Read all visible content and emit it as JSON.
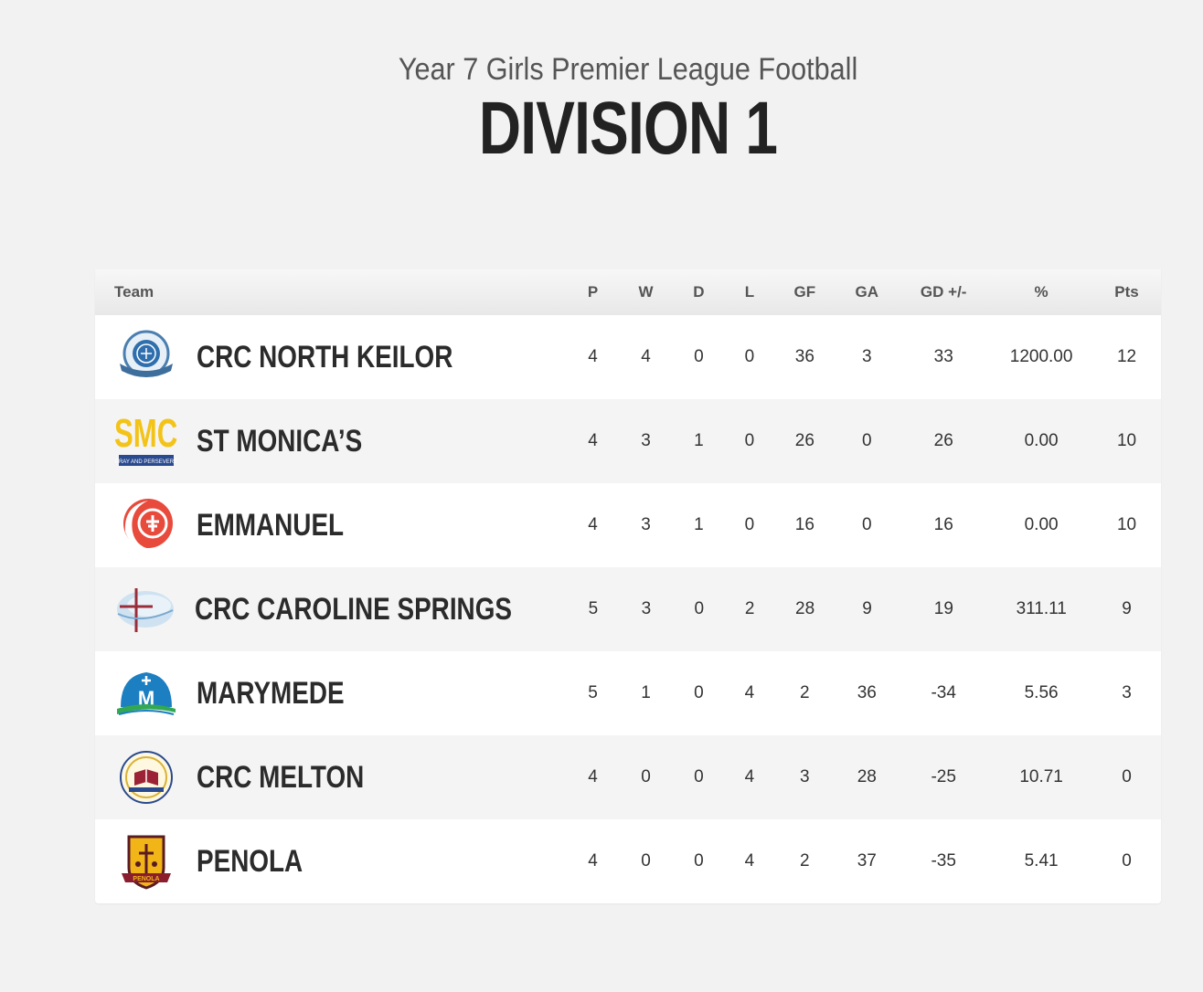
{
  "header": {
    "subtitle": "Year 7 Girls Premier League Football",
    "title": "DIVISION 1"
  },
  "table": {
    "columns": [
      "Team",
      "P",
      "W",
      "D",
      "L",
      "GF",
      "GA",
      "GD +/-",
      "%",
      "Pts"
    ],
    "rows": [
      {
        "team": "CRC NORTH KEILOR",
        "logo": "crc-north-keilor-logo",
        "p": "4",
        "w": "4",
        "d": "0",
        "l": "0",
        "gf": "36",
        "ga": "3",
        "gd": "33",
        "pct": "1200.00",
        "pts": "12"
      },
      {
        "team": "ST MONICA’S",
        "logo": "st-monicas-logo",
        "logo_text": "SMC",
        "logo_motto": "PRAY AND PERSEVERE",
        "p": "4",
        "w": "3",
        "d": "1",
        "l": "0",
        "gf": "26",
        "ga": "0",
        "gd": "26",
        "pct": "0.00",
        "pts": "10"
      },
      {
        "team": "EMMANUEL",
        "logo": "emmanuel-logo",
        "p": "4",
        "w": "3",
        "d": "1",
        "l": "0",
        "gf": "16",
        "ga": "0",
        "gd": "16",
        "pct": "0.00",
        "pts": "10"
      },
      {
        "team": "CRC CAROLINE SPRINGS",
        "logo": "crc-caroline-springs-logo",
        "p": "5",
        "w": "3",
        "d": "0",
        "l": "2",
        "gf": "28",
        "ga": "9",
        "gd": "19",
        "pct": "311.11",
        "pts": "9"
      },
      {
        "team": "MARYMEDE",
        "logo": "marymede-logo",
        "p": "5",
        "w": "1",
        "d": "0",
        "l": "4",
        "gf": "2",
        "ga": "36",
        "gd": "-34",
        "pct": "5.56",
        "pts": "3"
      },
      {
        "team": "CRC MELTON",
        "logo": "crc-melton-logo",
        "p": "4",
        "w": "0",
        "d": "0",
        "l": "4",
        "gf": "3",
        "ga": "28",
        "gd": "-25",
        "pct": "10.71",
        "pts": "0"
      },
      {
        "team": "PENOLA",
        "logo": "penola-logo",
        "logo_text": "PENOLA",
        "p": "4",
        "w": "0",
        "d": "0",
        "l": "4",
        "gf": "2",
        "ga": "37",
        "gd": "-35",
        "pct": "5.41",
        "pts": "0"
      }
    ]
  },
  "colors": {
    "background": "#f2f2f2",
    "title": "#222222",
    "subtitle": "#555555",
    "row_alt": "#f4f4f4"
  }
}
